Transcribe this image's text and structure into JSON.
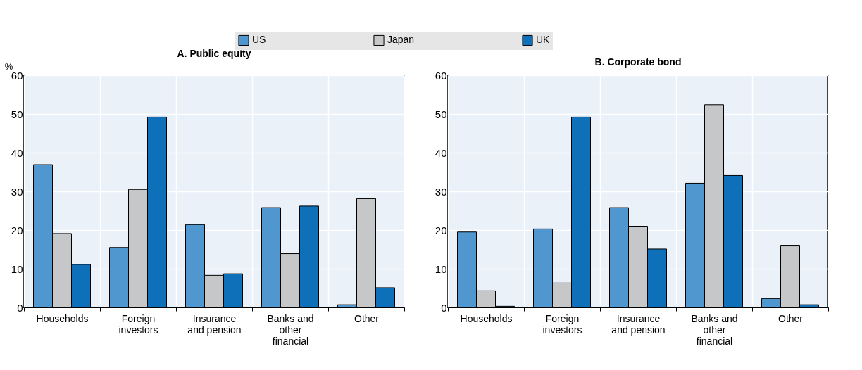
{
  "chart_data": [
    {
      "type": "bar",
      "title": "A. Public equity",
      "ylabel": "%",
      "categories": [
        "Households",
        "Foreign investors",
        "Insurance and pension",
        "Banks and other financial",
        "Other"
      ],
      "series": [
        {
          "name": "US",
          "color": "#4f97ce",
          "values": [
            36.9,
            15.5,
            21.4,
            25.8,
            0.7
          ]
        },
        {
          "name": "Japan",
          "color": "#c6c7c9",
          "values": [
            19.1,
            30.5,
            8.3,
            13.9,
            28.1
          ]
        },
        {
          "name": "UK",
          "color": "#0e70b9",
          "values": [
            11.1,
            49.2,
            8.7,
            26.2,
            5.1
          ]
        }
      ],
      "ylim": [
        0,
        60
      ],
      "yticks": [
        0,
        10,
        20,
        30,
        40,
        50,
        60
      ],
      "grid": true,
      "legend": "top"
    },
    {
      "type": "bar",
      "title": "B. Corporate bond",
      "categories": [
        "Households",
        "Foreign investors",
        "Insurance and pension",
        "Banks and other financial",
        "Other"
      ],
      "series": [
        {
          "name": "US",
          "color": "#4f97ce",
          "values": [
            19.5,
            20.3,
            25.8,
            32.1,
            2.3
          ]
        },
        {
          "name": "Japan",
          "color": "#c6c7c9",
          "values": [
            4.3,
            6.3,
            21.0,
            52.4,
            15.9
          ]
        },
        {
          "name": "UK",
          "color": "#0e70b9",
          "values": [
            0.3,
            49.2,
            15.1,
            34.1,
            0.7
          ]
        }
      ],
      "ylim": [
        0,
        60
      ],
      "yticks": [
        0,
        10,
        20,
        30,
        40,
        50,
        60
      ],
      "grid": true,
      "legend": "top"
    }
  ]
}
